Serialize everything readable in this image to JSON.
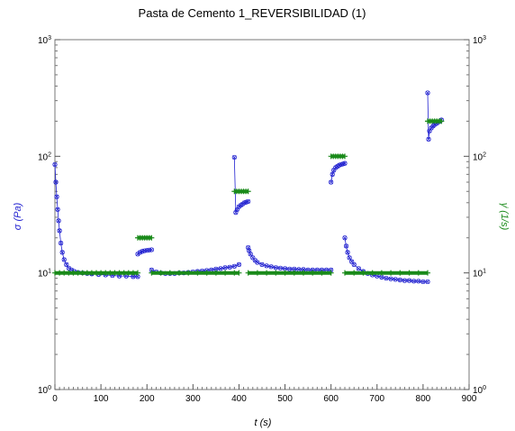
{
  "chart_data": {
    "type": "scatter",
    "title": "Pasta de Cemento 1_REVERSIBILIDAD (1)",
    "xlabel": "t (s)",
    "ylabel_left": "σ (Pa)",
    "ylabel_right": "γ̇ (1/s)",
    "xlim": [
      0,
      900
    ],
    "ylim_left": [
      1,
      1000
    ],
    "ylim_right": [
      1,
      1000
    ],
    "yscale": "log",
    "grid": false,
    "x_ticks": [
      "0",
      "100",
      "200",
      "300",
      "400",
      "500",
      "600",
      "700",
      "800",
      "900"
    ],
    "y_ticks": [
      {
        "base": "10",
        "exp": "0"
      },
      {
        "base": "10",
        "exp": "1"
      },
      {
        "base": "10",
        "exp": "2"
      },
      {
        "base": "10",
        "exp": "3"
      }
    ],
    "colors": {
      "stress": "#2020d0",
      "shear_rate": "#1a8a1a",
      "axis_left": "#2020d0",
      "axis_right": "#1a8a1a"
    },
    "series": [
      {
        "role": "stress",
        "axis": "left",
        "segments": [
          {
            "x": [
              0,
              2,
              4,
              6,
              8,
              10,
              13,
              16,
              20,
              25,
              30,
              36,
              42,
              50,
              60,
              70,
              80,
              95,
              110,
              125,
              140,
              155,
              170,
              180
            ],
            "y": [
              85,
              60,
              45,
              35,
              28,
              23,
              18,
              15,
              13,
              11.8,
              11,
              10.6,
              10.3,
              10.1,
              10.0,
              9.9,
              9.8,
              9.7,
              9.6,
              9.5,
              9.4,
              9.4,
              9.3,
              9.3
            ]
          },
          {
            "x": [
              180,
              185,
              190,
              195,
              200,
              205,
              210
            ],
            "y": [
              14.5,
              15.0,
              15.3,
              15.5,
              15.6,
              15.7,
              15.8
            ]
          },
          {
            "x": [
              210,
              220,
              230,
              240,
              250,
              260,
              270,
              280,
              290,
              300,
              310,
              320,
              330,
              340,
              350,
              360,
              370,
              380,
              390,
              400
            ],
            "y": [
              10.6,
              10.2,
              10.0,
              9.9,
              9.9,
              9.9,
              10.0,
              10.0,
              10.1,
              10.2,
              10.3,
              10.4,
              10.5,
              10.6,
              10.8,
              10.9,
              11.1,
              11.2,
              11.4,
              11.8
            ]
          },
          {
            "x": [
              390,
              393,
              396,
              400,
              404,
              408,
              412,
              416,
              420
            ],
            "y": [
              98,
              33,
              35,
              37,
              38,
              39,
              40,
              40.5,
              41
            ]
          },
          {
            "x": [
              420,
              422,
              425,
              430,
              435,
              440,
              450,
              460,
              470,
              480,
              490,
              500,
              510,
              520,
              530,
              540,
              550,
              560,
              570,
              580,
              590,
              600
            ],
            "y": [
              16.5,
              15.5,
              14.5,
              13.5,
              12.8,
              12.3,
              11.8,
              11.5,
              11.3,
              11.1,
              11.0,
              10.9,
              10.8,
              10.8,
              10.7,
              10.7,
              10.6,
              10.6,
              10.6,
              10.6,
              10.6,
              10.6
            ]
          },
          {
            "x": [
              600,
              603,
              606,
              610,
              614,
              618,
              622,
              626,
              630
            ],
            "y": [
              60,
              70,
              76,
              80,
              82,
              84,
              85,
              86,
              87
            ]
          },
          {
            "x": [
              630,
              633,
              636,
              640,
              645,
              650,
              660,
              670,
              680,
              690,
              700,
              710,
              720,
              730,
              740,
              750,
              760,
              770,
              780,
              790,
              800,
              810
            ],
            "y": [
              20,
              17,
              15,
              13.5,
              12.5,
              11.8,
              10.9,
              10.3,
              9.9,
              9.6,
              9.4,
              9.2,
              9.0,
              8.9,
              8.8,
              8.7,
              8.6,
              8.6,
              8.5,
              8.5,
              8.4,
              8.4
            ]
          },
          {
            "x": [
              810,
              812,
              814,
              818,
              822,
              826,
              830,
              835,
              840
            ],
            "y": [
              350,
              140,
              165,
              175,
              182,
              188,
              192,
              198,
              205
            ]
          }
        ]
      },
      {
        "role": "shear_rate",
        "axis": "right",
        "segments": [
          {
            "x": [
              0,
              10,
              20,
              30,
              40,
              50,
              60,
              70,
              80,
              90,
              100,
              110,
              120,
              130,
              140,
              150,
              160,
              170,
              180
            ],
            "y": [
              10,
              10,
              10,
              10,
              10,
              10,
              10,
              10,
              10,
              10,
              10,
              10,
              10,
              10,
              10,
              10,
              10,
              10,
              10
            ]
          },
          {
            "x": [
              180,
              185,
              190,
              195,
              200,
              205,
              210
            ],
            "y": [
              20,
              20,
              20,
              20,
              20,
              20,
              20
            ]
          },
          {
            "x": [
              210,
              230,
              250,
              270,
              290,
              310,
              330,
              350,
              370,
              390,
              400
            ],
            "y": [
              10,
              10,
              10,
              10,
              10,
              10,
              10,
              10,
              10,
              10,
              10
            ]
          },
          {
            "x": [
              390,
              395,
              400,
              405,
              410,
              415,
              420
            ],
            "y": [
              50,
              50,
              50,
              50,
              50,
              50,
              50
            ]
          },
          {
            "x": [
              420,
              440,
              460,
              480,
              500,
              520,
              540,
              560,
              580,
              600
            ],
            "y": [
              10,
              10,
              10,
              10,
              10,
              10,
              10,
              10,
              10,
              10
            ]
          },
          {
            "x": [
              600,
              605,
              610,
              615,
              620,
              625,
              630
            ],
            "y": [
              100,
              100,
              100,
              100,
              100,
              100,
              100
            ]
          },
          {
            "x": [
              630,
              650,
              670,
              690,
              710,
              730,
              750,
              770,
              790,
              810
            ],
            "y": [
              10,
              10,
              10,
              10,
              10,
              10,
              10,
              10,
              10,
              10
            ]
          },
          {
            "x": [
              810,
              815,
              820,
              825,
              830,
              835,
              840
            ],
            "y": [
              200,
              200,
              200,
              200,
              200,
              200,
              200
            ]
          }
        ]
      }
    ]
  }
}
